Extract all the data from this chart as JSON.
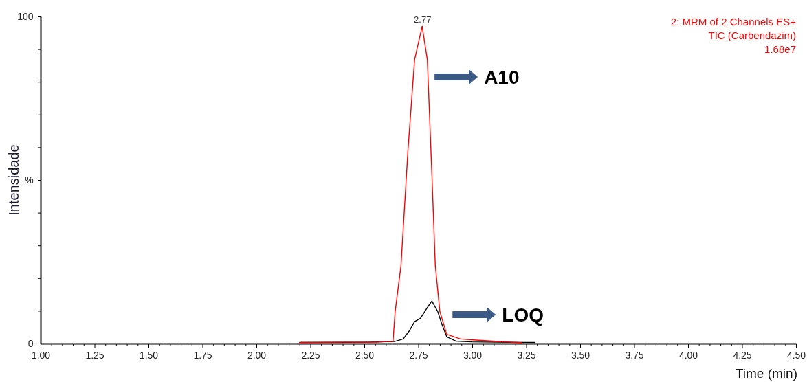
{
  "chart_data": {
    "type": "line",
    "xlabel": "Time (min)",
    "ylabel": "Intensidade",
    "xlim": [
      1.0,
      4.5
    ],
    "ylim": [
      0,
      100
    ],
    "xticks": [
      {
        "value": 1.0,
        "label": "1.00"
      },
      {
        "value": 1.05,
        "label": null
      },
      {
        "value": 1.1,
        "label": null
      },
      {
        "value": 1.15,
        "label": null
      },
      {
        "value": 1.2,
        "label": null
      },
      {
        "value": 1.25,
        "label": "1.25"
      },
      {
        "value": 1.3,
        "label": null
      },
      {
        "value": 1.35,
        "label": null
      },
      {
        "value": 1.4,
        "label": null
      },
      {
        "value": 1.45,
        "label": null
      },
      {
        "value": 1.5,
        "label": "1.50"
      },
      {
        "value": 1.55,
        "label": null
      },
      {
        "value": 1.6,
        "label": null
      },
      {
        "value": 1.65,
        "label": null
      },
      {
        "value": 1.7,
        "label": null
      },
      {
        "value": 1.75,
        "label": "1.75"
      },
      {
        "value": 1.8,
        "label": null
      },
      {
        "value": 1.85,
        "label": null
      },
      {
        "value": 1.9,
        "label": null
      },
      {
        "value": 1.95,
        "label": null
      },
      {
        "value": 2.0,
        "label": "2.00"
      },
      {
        "value": 2.05,
        "label": null
      },
      {
        "value": 2.1,
        "label": null
      },
      {
        "value": 2.15,
        "label": null
      },
      {
        "value": 2.2,
        "label": null
      },
      {
        "value": 2.25,
        "label": "2.25"
      },
      {
        "value": 2.3,
        "label": null
      },
      {
        "value": 2.35,
        "label": null
      },
      {
        "value": 2.4,
        "label": null
      },
      {
        "value": 2.45,
        "label": null
      },
      {
        "value": 2.5,
        "label": "2.50"
      },
      {
        "value": 2.55,
        "label": null
      },
      {
        "value": 2.6,
        "label": null
      },
      {
        "value": 2.65,
        "label": null
      },
      {
        "value": 2.7,
        "label": null
      },
      {
        "value": 2.75,
        "label": "2.75"
      },
      {
        "value": 2.8,
        "label": null
      },
      {
        "value": 2.85,
        "label": null
      },
      {
        "value": 2.9,
        "label": null
      },
      {
        "value": 2.95,
        "label": null
      },
      {
        "value": 3.0,
        "label": "3.00"
      },
      {
        "value": 3.05,
        "label": null
      },
      {
        "value": 3.1,
        "label": null
      },
      {
        "value": 3.15,
        "label": null
      },
      {
        "value": 3.2,
        "label": null
      },
      {
        "value": 3.25,
        "label": "3.25"
      },
      {
        "value": 3.3,
        "label": null
      },
      {
        "value": 3.35,
        "label": null
      },
      {
        "value": 3.4,
        "label": null
      },
      {
        "value": 3.45,
        "label": null
      },
      {
        "value": 3.5,
        "label": "3.50"
      },
      {
        "value": 3.55,
        "label": null
      },
      {
        "value": 3.6,
        "label": null
      },
      {
        "value": 3.65,
        "label": null
      },
      {
        "value": 3.7,
        "label": null
      },
      {
        "value": 3.75,
        "label": "3.75"
      },
      {
        "value": 3.8,
        "label": null
      },
      {
        "value": 3.85,
        "label": null
      },
      {
        "value": 3.9,
        "label": null
      },
      {
        "value": 3.95,
        "label": null
      },
      {
        "value": 4.0,
        "label": "4.00"
      },
      {
        "value": 4.05,
        "label": null
      },
      {
        "value": 4.1,
        "label": null
      },
      {
        "value": 4.15,
        "label": null
      },
      {
        "value": 4.2,
        "label": null
      },
      {
        "value": 4.25,
        "label": "4.25"
      },
      {
        "value": 4.3,
        "label": null
      },
      {
        "value": 4.35,
        "label": null
      },
      {
        "value": 4.4,
        "label": null
      },
      {
        "value": 4.45,
        "label": null
      },
      {
        "value": 4.5,
        "label": "4.50"
      }
    ],
    "yticks": [
      0,
      {
        "value": 10,
        "label": null
      },
      {
        "value": 20,
        "label": null
      },
      {
        "value": 30,
        "label": null
      },
      {
        "value": 40,
        "label": null
      },
      {
        "value": 50,
        "label": "%"
      },
      {
        "value": 60,
        "label": null
      },
      {
        "value": 70,
        "label": null
      },
      {
        "value": 80,
        "label": null
      },
      {
        "value": 90,
        "label": null
      },
      100
    ],
    "grid": false,
    "legend": false,
    "marker": "none",
    "line_style": "solid",
    "series": [
      {
        "name": "A10",
        "color": "#ff0000",
        "x": [
          2.2,
          2.4,
          2.55,
          2.633,
          2.643,
          2.67,
          2.702,
          2.733,
          2.768,
          2.792,
          2.813,
          2.829,
          2.85,
          2.882,
          2.946,
          3.03,
          3.23
        ],
        "values": [
          0.3,
          0.4,
          0.4,
          0.7,
          9.8,
          23.8,
          58.8,
          86.8,
          97,
          86.8,
          51.9,
          23.8,
          9.8,
          2.8,
          1.4,
          1.0,
          0.2
        ]
      },
      {
        "name": "LOQ",
        "color": "#000000",
        "x": [
          2.2,
          2.5,
          2.64,
          2.68,
          2.71,
          2.733,
          2.76,
          2.787,
          2.813,
          2.84,
          2.861,
          2.882,
          2.925,
          3.0,
          3.29
        ],
        "values": [
          0.3,
          0.4,
          0.6,
          1.4,
          4.0,
          6.7,
          7.7,
          10.5,
          13.0,
          9.8,
          5.6,
          2.1,
          0.7,
          0.5,
          0.3
        ]
      }
    ],
    "annotations": [
      {
        "text": "2.77",
        "x": 2.77,
        "y": 97
      },
      "2: MRM of 2 Channels ES+",
      "TIC (Carbendazim)",
      "1.68e7"
    ]
  }
}
